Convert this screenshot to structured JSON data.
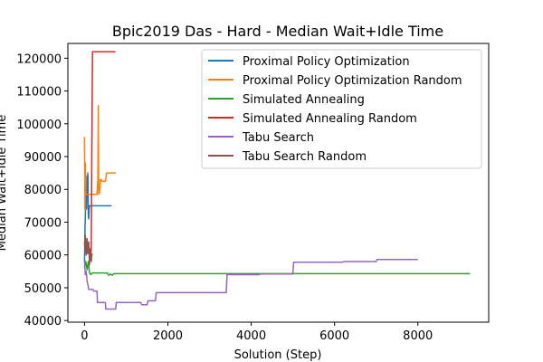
{
  "chart_data": {
    "type": "line",
    "title": "Bpic2019 Das - Hard - Median Wait+Idle Time",
    "xlabel": "Solution (Step)",
    "ylabel": "Median Wait+Idle Time",
    "xlim": [
      -400,
      9700
    ],
    "ylim": [
      39500,
      124500
    ],
    "xticks": [
      0,
      2000,
      4000,
      6000,
      8000
    ],
    "yticks": [
      40000,
      50000,
      60000,
      70000,
      80000,
      90000,
      100000,
      110000,
      120000
    ],
    "legend_position": "top-right",
    "grid": false,
    "series": [
      {
        "name": "Proximal Policy Optimization",
        "color": "#1f77b4",
        "points": [
          [
            0,
            58000
          ],
          [
            10,
            68000
          ],
          [
            20,
            72000
          ],
          [
            30,
            80000
          ],
          [
            40,
            78000
          ],
          [
            50,
            74000
          ],
          [
            60,
            84000
          ],
          [
            70,
            79000
          ],
          [
            80,
            85000
          ],
          [
            90,
            72000
          ],
          [
            100,
            71000
          ],
          [
            110,
            74000
          ],
          [
            120,
            75000
          ],
          [
            650,
            75000
          ]
        ]
      },
      {
        "name": "Proximal Policy Optimization Random",
        "color": "#ff7f0e",
        "points": [
          [
            0,
            96000
          ],
          [
            10,
            73500
          ],
          [
            20,
            88000
          ],
          [
            30,
            78500
          ],
          [
            300,
            78500
          ],
          [
            320,
            83000
          ],
          [
            330,
            105500
          ],
          [
            340,
            78500
          ],
          [
            360,
            79000
          ],
          [
            380,
            83000
          ],
          [
            400,
            83000
          ],
          [
            420,
            82500
          ],
          [
            500,
            82500
          ],
          [
            530,
            85000
          ],
          [
            750,
            85000
          ]
        ]
      },
      {
        "name": "Simulated Annealing",
        "color": "#2ca02c",
        "points": [
          [
            0,
            56000
          ],
          [
            30,
            58000
          ],
          [
            60,
            55500
          ],
          [
            90,
            58000
          ],
          [
            120,
            54500
          ],
          [
            150,
            54000
          ],
          [
            180,
            54500
          ],
          [
            550,
            54500
          ],
          [
            580,
            53800
          ],
          [
            620,
            54200
          ],
          [
            660,
            53800
          ],
          [
            700,
            54300
          ],
          [
            9250,
            54300
          ]
        ]
      },
      {
        "name": "Simulated Annealing Random",
        "color": "#d62728",
        "points": [
          [
            0,
            64000
          ],
          [
            20,
            62000
          ],
          [
            40,
            60000
          ],
          [
            60,
            61000
          ],
          [
            80,
            60500
          ],
          [
            150,
            60500
          ],
          [
            160,
            61000
          ],
          [
            190,
            122000
          ],
          [
            740,
            122000
          ]
        ]
      },
      {
        "name": "Tabu Search",
        "color": "#9467bd",
        "points": [
          [
            0,
            58000
          ],
          [
            20,
            54000
          ],
          [
            40,
            55000
          ],
          [
            60,
            52000
          ],
          [
            80,
            51000
          ],
          [
            100,
            49500
          ],
          [
            200,
            49500
          ],
          [
            220,
            49000
          ],
          [
            300,
            49000
          ],
          [
            310,
            45500
          ],
          [
            500,
            45500
          ],
          [
            510,
            43500
          ],
          [
            750,
            43500
          ],
          [
            760,
            45500
          ],
          [
            1350,
            45500
          ],
          [
            1370,
            44800
          ],
          [
            1500,
            44800
          ],
          [
            1520,
            46000
          ],
          [
            1700,
            46000
          ],
          [
            1720,
            48500
          ],
          [
            3400,
            48500
          ],
          [
            3420,
            54000
          ],
          [
            4200,
            54000
          ],
          [
            4220,
            54200
          ],
          [
            5000,
            54200
          ],
          [
            5020,
            57800
          ],
          [
            6200,
            57800
          ],
          [
            6220,
            58000
          ],
          [
            7000,
            58000
          ],
          [
            7020,
            58600
          ],
          [
            8000,
            58600
          ]
        ]
      },
      {
        "name": "Tabu Search Random",
        "color": "#8c564b",
        "points": [
          [
            0,
            63000
          ],
          [
            20,
            66000
          ],
          [
            40,
            60000
          ],
          [
            60,
            65000
          ],
          [
            80,
            61000
          ],
          [
            100,
            64000
          ],
          [
            120,
            57000
          ],
          [
            140,
            62000
          ],
          [
            160,
            58000
          ],
          [
            180,
            60500
          ]
        ]
      }
    ]
  }
}
